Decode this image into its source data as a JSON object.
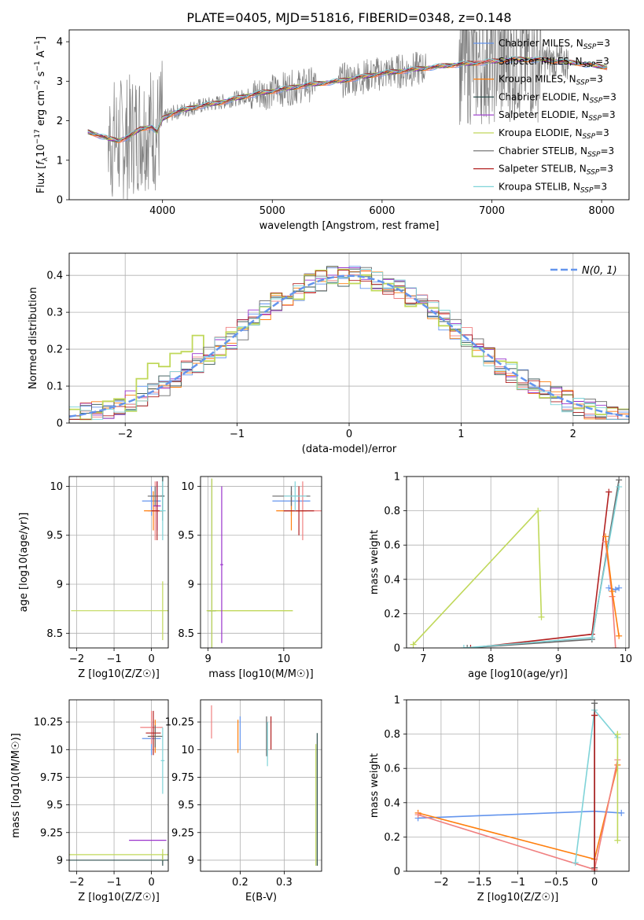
{
  "figure": {
    "title": "PLATE=0405, MJD=51816, FIBERID=0348, z=0.148"
  },
  "colors": {
    "Chabrier MILES": "#6495ed",
    "Salpeter MILES": "#f08080",
    "Kroupa MILES": "#ff7f0e",
    "Chabrier ELODIE": "#2f4f4f",
    "Salpeter ELODIE": "#9932cc",
    "Kroupa ELODIE": "#c0d85a",
    "Chabrier STELIB": "#696969",
    "Salpeter STELIB": "#b22222",
    "Kroupa STELIB": "#7fd3d8",
    "data": "#808080",
    "gauss": "#6495ed"
  },
  "chart_data": [
    {
      "id": "spectrum",
      "type": "line",
      "xlabel": "wavelength [Angstrom, rest frame]",
      "ylabel": "Flux [f_λ 10^-17 erg cm^-2 s^-1 A^-1]",
      "xlim": [
        3150,
        8250
      ],
      "ylim": [
        0,
        4.3
      ],
      "xticks": [
        4000,
        5000,
        6000,
        7000,
        8000
      ],
      "yticks": [
        0,
        1,
        2,
        3,
        4
      ],
      "grid": false,
      "legend_position": "upper-right",
      "legend": [
        "Chabrier MILES",
        "Salpeter MILES",
        "Kroupa MILES",
        "Chabrier ELODIE",
        "Salpeter ELODIE",
        "Kroupa ELODIE",
        "Chabrier STELIB",
        "Salpeter STELIB",
        "Kroupa STELIB"
      ],
      "legend_suffix": "N_SSP=3",
      "model_continuum": {
        "x": [
          3320,
          3400,
          3500,
          3600,
          3700,
          3800,
          3900,
          3950,
          4000,
          4100,
          4300,
          4500,
          4800,
          5000,
          5300,
          5600,
          6000,
          6300,
          6600,
          6800,
          7000,
          7200,
          7400,
          7600,
          7800,
          8050
        ],
        "y": [
          1.72,
          1.65,
          1.55,
          1.5,
          1.6,
          1.8,
          1.85,
          1.7,
          2.05,
          2.2,
          2.35,
          2.45,
          2.65,
          2.75,
          2.9,
          3.0,
          3.2,
          3.3,
          3.4,
          3.45,
          3.5,
          3.55,
          3.55,
          3.5,
          3.45,
          3.35
        ]
      }
    },
    {
      "id": "residuals",
      "type": "line",
      "xlabel": "(data-model)/error",
      "ylabel": "Normed distribution",
      "xlim": [
        -2.5,
        2.5
      ],
      "ylim": [
        0,
        0.46
      ],
      "xticks": [
        -2,
        -1,
        0,
        1,
        2
      ],
      "yticks": [
        0.0,
        0.1,
        0.2,
        0.3,
        0.4
      ],
      "grid": true,
      "legend_position": "upper-right",
      "legend_label": "N(0,1)"
    },
    {
      "id": "age_vs_Z",
      "type": "scatter",
      "xlabel": "Z [log10(Z/Z☉)]",
      "ylabel": "age  [log10(age/yr)]",
      "xlim": [
        -2.2,
        0.45
      ],
      "ylim": [
        8.35,
        10.1
      ],
      "xticks": [
        -2,
        -1,
        0
      ],
      "yticks": [
        8.5,
        9.0,
        9.5,
        10.0
      ],
      "grid": true,
      "points": [
        {
          "model": "Chabrier MILES",
          "x": 0.0,
          "y": 9.85,
          "xerr": 0.25,
          "yerr": 0.15
        },
        {
          "model": "Salpeter MILES",
          "x": 0.1,
          "y": 9.75,
          "xerr": 0.2,
          "yerr": 0.3
        },
        {
          "model": "Kroupa MILES",
          "x": 0.05,
          "y": 9.75,
          "xerr": 0.25,
          "yerr": 0.2
        },
        {
          "model": "Chabrier ELODIE",
          "x": 0.3,
          "y": 9.9,
          "xerr": 0.05,
          "yerr": 0.25
        },
        {
          "model": "Salpeter ELODIE",
          "x": 0.15,
          "y": 9.8,
          "xerr": 0.1,
          "yerr": 0.25
        },
        {
          "model": "Kroupa ELODIE",
          "x": 0.3,
          "y": 8.73,
          "xerr": 2.45,
          "yerr": 0.3
        },
        {
          "model": "Chabrier STELIB",
          "x": 0.1,
          "y": 9.9,
          "xerr": 0.2,
          "yerr": 0.1
        },
        {
          "model": "Salpeter STELIB",
          "x": 0.15,
          "y": 9.75,
          "xerr": 0.15,
          "yerr": 0.3
        },
        {
          "model": "Kroupa STELIB",
          "x": 0.3,
          "y": 9.75,
          "xerr": 0.08,
          "yerr": 0.3
        }
      ]
    },
    {
      "id": "age_vs_mass",
      "type": "scatter",
      "xlabel": "mass [log10(M/M☉)]",
      "ylabel": "",
      "xlim": [
        8.9,
        10.5
      ],
      "ylim": [
        8.35,
        10.1
      ],
      "xticks": [
        9,
        10
      ],
      "yticks": [
        8.5,
        9.0,
        9.5,
        10.0
      ],
      "grid": true,
      "points": [
        {
          "model": "Chabrier MILES",
          "x": 10.1,
          "y": 9.85,
          "xerr": 0.25,
          "yerr": 0.15
        },
        {
          "model": "Salpeter MILES",
          "x": 10.25,
          "y": 9.75,
          "xerr": 0.25,
          "yerr": 0.3
        },
        {
          "model": "Kroupa MILES",
          "x": 10.1,
          "y": 9.75,
          "xerr": 0.2,
          "yerr": 0.2
        },
        {
          "model": "Chabrier ELODIE",
          "x": 9.05,
          "y": 8.73,
          "xerr": 0.05,
          "yerr": 1.35
        },
        {
          "model": "Salpeter ELODIE",
          "x": 9.18,
          "y": 9.2,
          "xerr": 0.02,
          "yerr": 0.8
        },
        {
          "model": "Kroupa ELODIE",
          "x": 9.05,
          "y": 8.73,
          "xerr": 0.05,
          "yerr": 1.35
        },
        {
          "model": "Chabrier STELIB",
          "x": 10.1,
          "y": 9.9,
          "xerr": 0.25,
          "yerr": 0.1
        },
        {
          "model": "Salpeter STELIB",
          "x": 10.2,
          "y": 9.75,
          "xerr": 0.2,
          "yerr": 0.25
        },
        {
          "model": "Kroupa STELIB",
          "x": 10.15,
          "y": 9.9,
          "xerr": 0.15,
          "yerr": 0.15
        }
      ],
      "extra_hline": {
        "x0": 8.98,
        "x1": 10.12,
        "y": 8.73
      }
    },
    {
      "id": "mass_weight_vs_age",
      "type": "line",
      "xlabel": "age  [log10(age/yr)]",
      "ylabel": "mass weight",
      "xlim": [
        6.75,
        10.05
      ],
      "ylim": [
        0,
        1.0
      ],
      "xticks": [
        7,
        8,
        9,
        10
      ],
      "yticks": [
        0.0,
        0.2,
        0.4,
        0.6,
        0.8,
        1.0
      ],
      "grid": true,
      "series": [
        {
          "model": "Kroupa ELODIE",
          "x": [
            6.85,
            8.7,
            8.75
          ],
          "y": [
            0.02,
            0.8,
            0.18
          ]
        },
        {
          "model": "Salpeter STELIB",
          "x": [
            7.7,
            9.5,
            9.75
          ],
          "y": [
            0.0,
            0.08,
            0.91
          ]
        },
        {
          "model": "Chabrier STELIB",
          "x": [
            7.65,
            9.5,
            9.9
          ],
          "y": [
            0.0,
            0.05,
            0.98
          ]
        },
        {
          "model": "Kroupa STELIB",
          "x": [
            7.6,
            9.5,
            9.9
          ],
          "y": [
            0.0,
            0.06,
            0.94
          ]
        },
        {
          "model": "Chabrier MILES",
          "x": [
            9.75,
            9.85,
            9.9
          ],
          "y": [
            0.35,
            0.34,
            0.35
          ]
        },
        {
          "model": "Salpeter MILES",
          "x": [
            9.7,
            9.8,
            9.85
          ],
          "y": [
            0.62,
            0.3,
            0.0
          ]
        },
        {
          "model": "Kroupa MILES",
          "x": [
            9.7,
            9.8,
            9.9
          ],
          "y": [
            0.65,
            0.33,
            0.07
          ]
        }
      ]
    },
    {
      "id": "mass_vs_Z",
      "type": "scatter",
      "xlabel": "Z [log10(Z/Z☉)]",
      "ylabel": "mass [log10(M/M☉)]",
      "xlim": [
        -2.2,
        0.45
      ],
      "ylim": [
        8.9,
        10.45
      ],
      "xticks": [
        -2,
        -1,
        0
      ],
      "yticks": [
        9.0,
        9.25,
        9.5,
        9.75,
        10.0,
        10.25
      ],
      "grid": true,
      "points": [
        {
          "model": "Chabrier MILES",
          "x": 0.0,
          "y": 10.1,
          "xerr": 0.25,
          "yerr": 0.15
        },
        {
          "model": "Salpeter MILES",
          "x": 0.0,
          "y": 10.2,
          "xerr": 0.3,
          "yerr": 0.15
        },
        {
          "model": "Kroupa MILES",
          "x": 0.1,
          "y": 10.12,
          "xerr": 0.15,
          "yerr": 0.15
        },
        {
          "model": "Chabrier ELODIE",
          "x": 0.3,
          "y": 9.0,
          "xerr": 2.5,
          "yerr": 0.05
        },
        {
          "model": "Salpeter ELODIE",
          "x": -0.1,
          "y": 9.18,
          "xerr": 0.5,
          "yerr": 0.0
        },
        {
          "model": "Kroupa ELODIE",
          "x": 0.3,
          "y": 9.05,
          "xerr": 2.5,
          "yerr": 0.05
        },
        {
          "model": "Chabrier STELIB",
          "x": 0.1,
          "y": 10.12,
          "xerr": 0.2,
          "yerr": 0.1
        },
        {
          "model": "Salpeter STELIB",
          "x": 0.05,
          "y": 10.15,
          "xerr": 0.2,
          "yerr": 0.2
        },
        {
          "model": "Kroupa STELIB",
          "x": 0.3,
          "y": 9.9,
          "xerr": 0.05,
          "yerr": 0.3
        }
      ]
    },
    {
      "id": "mass_vs_ebv",
      "type": "scatter",
      "xlabel": "E(B-V)",
      "ylabel": "",
      "xlim": [
        0.11,
        0.385
      ],
      "ylim": [
        8.9,
        10.45
      ],
      "xticks": [
        0.2,
        0.3
      ],
      "yticks": [
        9.0,
        9.25,
        9.5,
        9.75,
        10.0,
        10.25
      ],
      "grid": true,
      "points": [
        {
          "model": "Salpeter MILES",
          "x": 0.135,
          "y": 10.25,
          "xerr": 0,
          "yerr": 0.15
        },
        {
          "model": "Chabrier MILES",
          "x": 0.2,
          "y": 10.15,
          "xerr": 0,
          "yerr": 0.15
        },
        {
          "model": "Kroupa MILES",
          "x": 0.195,
          "y": 10.12,
          "xerr": 0,
          "yerr": 0.15
        },
        {
          "model": "Chabrier STELIB",
          "x": 0.26,
          "y": 10.12,
          "xerr": 0,
          "yerr": 0.18
        },
        {
          "model": "Kroupa STELIB",
          "x": 0.262,
          "y": 10.05,
          "xerr": 0,
          "yerr": 0.2
        },
        {
          "model": "Salpeter STELIB",
          "x": 0.27,
          "y": 10.15,
          "xerr": 0,
          "yerr": 0.15
        },
        {
          "model": "Chabrier ELODIE",
          "x": 0.375,
          "y": 9.55,
          "xerr": 0,
          "yerr": 0.6
        },
        {
          "model": "Kroupa ELODIE",
          "x": 0.372,
          "y": 9.5,
          "xerr": 0,
          "yerr": 0.55
        }
      ]
    },
    {
      "id": "mass_weight_vs_Z",
      "type": "line",
      "xlabel": "Z [log10(Z/Z☉)]",
      "ylabel": "mass weight",
      "xlim": [
        -2.45,
        0.45
      ],
      "ylim": [
        0,
        1.0
      ],
      "xticks": [
        -2.0,
        -1.5,
        -1.0,
        -0.5,
        0.0
      ],
      "yticks": [
        0.0,
        0.2,
        0.4,
        0.6,
        0.8,
        1.0
      ],
      "grid": true,
      "series": [
        {
          "model": "Chabrier MILES",
          "x": [
            -2.3,
            0.0,
            0.35
          ],
          "y": [
            0.31,
            0.35,
            0.34
          ]
        },
        {
          "model": "Kroupa MILES",
          "x": [
            -2.3,
            0.0,
            0.3
          ],
          "y": [
            0.34,
            0.07,
            0.62
          ]
        },
        {
          "model": "Salpeter MILES",
          "x": [
            -2.3,
            0.0,
            0.3
          ],
          "y": [
            0.33,
            0.01,
            0.65
          ]
        },
        {
          "model": "Kroupa STELIB",
          "x": [
            -0.25,
            0.0,
            0.3
          ],
          "y": [
            0.05,
            0.94,
            0.78
          ]
        },
        {
          "model": "Chabrier STELIB",
          "x": [
            0.0,
            0.0,
            0.0
          ],
          "y": [
            0.02,
            0.98,
            0.98
          ]
        },
        {
          "model": "Salpeter STELIB",
          "x": [
            0.0,
            0.0,
            0.0
          ],
          "y": [
            0.0,
            0.91,
            0.91
          ]
        },
        {
          "model": "Kroupa ELODIE",
          "x": [
            0.3,
            0.3,
            0.3
          ],
          "y": [
            0.18,
            0.8,
            0.8
          ]
        }
      ]
    }
  ]
}
